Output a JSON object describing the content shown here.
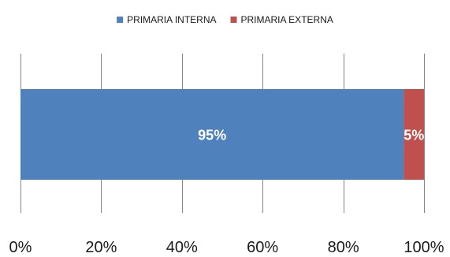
{
  "chart_data": {
    "type": "bar",
    "orientation": "horizontal",
    "stacked": "percent",
    "categories": [
      ""
    ],
    "series": [
      {
        "name": "PRIMARIA INTERNA",
        "values": [
          95
        ],
        "label": "95%",
        "color": "#4f81bd"
      },
      {
        "name": "PRIMARIA EXTERNA",
        "values": [
          5
        ],
        "label": "5%",
        "color": "#c0504d"
      }
    ],
    "xlim": [
      0,
      100
    ],
    "x_ticks": [
      0,
      20,
      40,
      60,
      80,
      100
    ],
    "x_tick_labels": [
      "0%",
      "20%",
      "40%",
      "60%",
      "80%",
      "100%"
    ],
    "legend_position": "top",
    "grid": "vertical",
    "grid_color": "#868686"
  }
}
